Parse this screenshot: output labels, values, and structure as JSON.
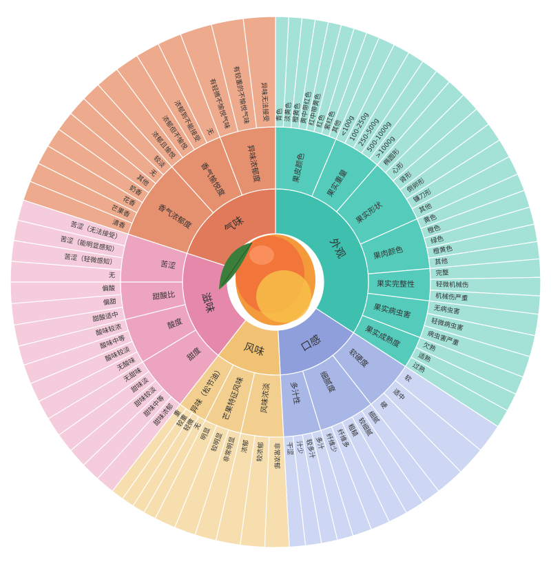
{
  "center_icon": "mango-icon",
  "colors": {
    "appearance": {
      "l1": "#3fbfae",
      "l2": "#55ccbb",
      "l3": "#a4e2d8"
    },
    "texture": {
      "l1": "#8f9fdb",
      "l2": "#a8b7e6",
      "l3": "#cdd6f2"
    },
    "flavor": {
      "l1": "#f2c274",
      "l2": "#f3cf8f",
      "l3": "#f6deaf"
    },
    "taste": {
      "l1": "#e688aa",
      "l2": "#eda4bf",
      "l3": "#f4ccdb"
    },
    "aroma": {
      "l1": "#e07a5a",
      "l2": "#e5906f",
      "l3": "#eeaa8c"
    }
  },
  "categories": [
    {
      "key": "appearance",
      "label": "外观",
      "start": -0.0,
      "end": 123.0,
      "children": [
        {
          "label": "果皮颜色",
          "start": 0.0,
          "end": 23.0,
          "children": [
            "青色",
            "淡黄色",
            "橙黄色",
            "黄中带红色",
            "红中带黄色",
            "红色",
            "紫红色",
            "其他"
          ]
        },
        {
          "label": "果实重量",
          "start": 23.0,
          "end": 41.0,
          "children": [
            "<100g",
            "100-250g",
            "250-500g",
            "500-1000g",
            ">1000g"
          ]
        },
        {
          "label": "果实形状",
          "start": 41.0,
          "end": 66.0,
          "children": [
            "椭圆形",
            "心形",
            "肾形",
            "倒卵形",
            "镰刀形",
            "其他"
          ]
        },
        {
          "label": "果肉颜色",
          "start": 66.0,
          "end": 85.0,
          "children": [
            "黄色",
            "橙色",
            "绿色",
            "橙黄色",
            "其他"
          ]
        },
        {
          "label": "果实完整性",
          "start": 85.0,
          "end": 97.0,
          "children": [
            "完整",
            "轻微机械伤",
            "机械伤严重"
          ]
        },
        {
          "label": "果实病虫害",
          "start": 97.0,
          "end": 111.0,
          "children": [
            "无病虫害",
            "轻微病虫害",
            "病虫害严重"
          ]
        },
        {
          "label": "果实成熟度",
          "start": 111.0,
          "end": 123.0,
          "children": [
            "欠熟",
            "适熟",
            "过熟"
          ]
        }
      ]
    },
    {
      "key": "texture",
      "label": "口感",
      "start": 123.0,
      "end": 177.0,
      "children": [
        {
          "label": "软硬度",
          "start": 123.0,
          "end": 142.0,
          "children": [
            "软",
            "适中",
            "硬"
          ]
        },
        {
          "label": "细腻度",
          "start": 142.0,
          "end": 163.0,
          "children": [
            "细腻",
            "较细腻",
            "粗糙",
            "纤维多",
            "纤维少"
          ]
        },
        {
          "label": "多汁性",
          "start": 163.0,
          "end": 177.0,
          "children": [
            "多汁",
            "较多汁",
            "汁少",
            "干涩"
          ]
        }
      ]
    },
    {
      "key": "flavor",
      "label": "风味",
      "start": 177.0,
      "end": 218.0,
      "children": [
        {
          "label": "风味浓淡",
          "start": 177.0,
          "end": 193.0,
          "children": [
            "非常浓郁",
            "较浓郁",
            "浓郁"
          ]
        },
        {
          "label": "芒果特征风味",
          "start": 193.0,
          "end": 207.0,
          "children": [
            "非常明显",
            "较明显",
            "明显"
          ]
        },
        {
          "label": "异味（松节油）",
          "start": 207.0,
          "end": 218.0,
          "children": [
            "无",
            "轻微",
            "较重",
            "重"
          ]
        }
      ]
    },
    {
      "key": "taste",
      "label": "滋味",
      "start": 218.0,
      "end": 288.0,
      "children": [
        {
          "label": "甜度",
          "start": 218.0,
          "end": 239.0,
          "children": [
            "甜味浓郁",
            "甜味中等",
            "甜味较淡",
            "甜味淡",
            "无甜味"
          ]
        },
        {
          "label": "酸度",
          "start": 239.0,
          "end": 256.0,
          "children": [
            "无酸味",
            "酸味较淡",
            "酸味中等",
            "酸味较浓"
          ]
        },
        {
          "label": "甜酸比",
          "start": 256.0,
          "end": 270.0,
          "children": [
            "甜酸适中",
            "偏甜",
            "偏酸"
          ]
        },
        {
          "label": "苦涩",
          "start": 270.0,
          "end": 288.0,
          "children": [
            "无",
            "苦涩（轻微感知）",
            "苦涩（能明显感知）",
            "苦涩（无法接受）"
          ]
        }
      ]
    },
    {
      "key": "aroma",
      "label": "气味",
      "start": 288.0,
      "end": 360.0,
      "children": [
        {
          "label": "香气浓郁度",
          "start": 288.0,
          "end": 318.0,
          "children": [
            "清香",
            "芒果香",
            "花香",
            "奶香",
            "其他",
            "无",
            "较淡"
          ]
        },
        {
          "label": "香气愉悦度",
          "start": 318.0,
          "end": 339.0,
          "children": [
            "浓郁且愉悦",
            "浓郁但不愉悦",
            "浓郁到不能接受",
            "无"
          ]
        },
        {
          "label": "异味浓郁度",
          "start": 339.0,
          "end": 360.0,
          "children": [
            "有轻微不愉悦气味",
            "有较重的不愉悦气味",
            "异味无法接受"
          ]
        }
      ]
    }
  ]
}
